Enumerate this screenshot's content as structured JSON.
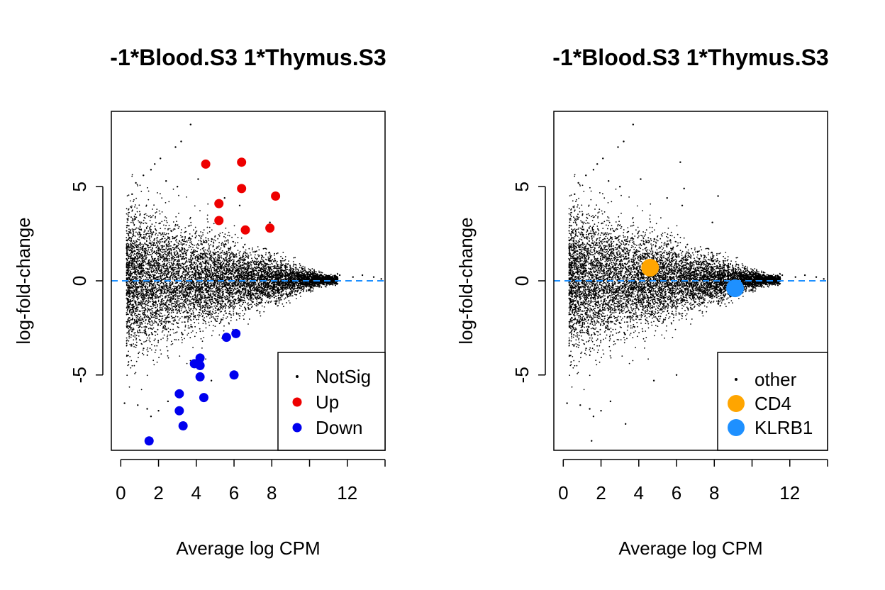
{
  "chart_data": [
    {
      "type": "scatter",
      "title": "-1*Blood.S3 1*Thymus.S3",
      "xlabel": "Average log CPM",
      "ylabel": "log-fold-change",
      "xlim": [
        -0.5,
        14
      ],
      "ylim": [
        -9,
        9
      ],
      "x_ticks": [
        0,
        2,
        4,
        6,
        8,
        10,
        12,
        14
      ],
      "x_tick_labels": [
        "0",
        "2",
        "4",
        "6",
        "8",
        "",
        "12",
        ""
      ],
      "y_ticks": [
        -5,
        0,
        5
      ],
      "y_tick_labels": [
        "-5",
        "0",
        "5"
      ],
      "reference_line": {
        "y": 0,
        "color": "#1E90FF",
        "style": "dashed"
      },
      "legend": {
        "placement": "bottom-right",
        "entries": [
          {
            "label": "NotSig",
            "color": "#000000",
            "marker": "small-dot"
          },
          {
            "label": "Up",
            "color": "#EE0000",
            "marker": "dot"
          },
          {
            "label": "Down",
            "color": "#0000EE",
            "marker": "dot"
          }
        ]
      },
      "background": {
        "name": "NotSig",
        "color": "#000000",
        "bulk_x_range": [
          0.3,
          11.5
        ],
        "tail_points": [
          [
            3.7,
            8.3
          ],
          [
            3.2,
            7.4
          ],
          [
            2.9,
            7.1
          ],
          [
            1.6,
            5.9
          ],
          [
            1.8,
            6.2
          ],
          [
            2.1,
            6.5
          ],
          [
            0.8,
            5.2
          ],
          [
            0.6,
            4.6
          ],
          [
            1.2,
            5.6
          ],
          [
            2.4,
            5.3
          ],
          [
            3.0,
            5.0
          ],
          [
            4.1,
            5.4
          ],
          [
            5.5,
            4.4
          ],
          [
            6.3,
            4.0
          ],
          [
            7.9,
            3.1
          ],
          [
            11.6,
            0.3
          ],
          [
            12.3,
            0.2
          ],
          [
            12.8,
            0.3
          ],
          [
            13.4,
            0.2
          ],
          [
            13.8,
            0.1
          ],
          [
            0.9,
            -6.6
          ],
          [
            0.2,
            -6.5
          ],
          [
            1.4,
            -6.8
          ],
          [
            1.6,
            -7.2
          ],
          [
            2.0,
            -6.9
          ],
          [
            2.5,
            -6.4
          ],
          [
            4.8,
            -5.3
          ],
          [
            8.2,
            -1.2
          ]
        ]
      },
      "series": [
        {
          "name": "Up",
          "color": "#EE0000",
          "points": [
            [
              4.5,
              6.2
            ],
            [
              6.4,
              6.3
            ],
            [
              6.4,
              4.9
            ],
            [
              8.2,
              4.5
            ],
            [
              5.2,
              4.1
            ],
            [
              5.2,
              3.2
            ],
            [
              6.6,
              2.7
            ],
            [
              7.9,
              2.8
            ]
          ]
        },
        {
          "name": "Down",
          "color": "#0000EE",
          "points": [
            [
              6.1,
              -2.8
            ],
            [
              5.6,
              -3.0
            ],
            [
              4.2,
              -4.1
            ],
            [
              3.9,
              -4.4
            ],
            [
              4.2,
              -4.5
            ],
            [
              4.2,
              -5.1
            ],
            [
              6.0,
              -5.0
            ],
            [
              3.1,
              -6.0
            ],
            [
              4.4,
              -6.2
            ],
            [
              3.1,
              -6.9
            ],
            [
              3.3,
              -7.7
            ],
            [
              1.5,
              -8.5
            ]
          ]
        }
      ]
    },
    {
      "type": "scatter",
      "title": "-1*Blood.S3 1*Thymus.S3",
      "xlabel": "Average log CPM",
      "ylabel": "log-fold-change",
      "xlim": [
        -0.5,
        14
      ],
      "ylim": [
        -9,
        9
      ],
      "x_ticks": [
        0,
        2,
        4,
        6,
        8,
        10,
        12,
        14
      ],
      "x_tick_labels": [
        "0",
        "2",
        "4",
        "6",
        "8",
        "",
        "12",
        ""
      ],
      "y_ticks": [
        -5,
        0,
        5
      ],
      "y_tick_labels": [
        "-5",
        "0",
        "5"
      ],
      "reference_line": {
        "y": 0,
        "color": "#1E90FF",
        "style": "dashed"
      },
      "legend": {
        "placement": "bottom-right",
        "entries": [
          {
            "label": "other",
            "color": "#000000",
            "marker": "small-dot"
          },
          {
            "label": "CD4",
            "color": "#FFA500",
            "marker": "large-dot"
          },
          {
            "label": "KLRB1",
            "color": "#1E90FF",
            "marker": "large-dot"
          }
        ]
      },
      "background": {
        "name": "other",
        "color": "#000000",
        "bulk_x_range": [
          0.3,
          11.5
        ],
        "tail_points": [
          [
            3.7,
            8.3
          ],
          [
            3.2,
            7.4
          ],
          [
            2.9,
            7.1
          ],
          [
            1.6,
            5.9
          ],
          [
            1.8,
            6.2
          ],
          [
            2.1,
            6.5
          ],
          [
            0.8,
            5.2
          ],
          [
            0.6,
            4.6
          ],
          [
            1.2,
            5.6
          ],
          [
            2.4,
            5.3
          ],
          [
            3.0,
            5.0
          ],
          [
            4.1,
            5.4
          ],
          [
            6.2,
            6.3
          ],
          [
            6.4,
            4.9
          ],
          [
            8.2,
            4.5
          ],
          [
            5.5,
            4.4
          ],
          [
            6.3,
            4.0
          ],
          [
            7.9,
            3.1
          ],
          [
            11.6,
            0.3
          ],
          [
            12.3,
            0.2
          ],
          [
            12.8,
            0.3
          ],
          [
            13.4,
            0.2
          ],
          [
            13.8,
            0.1
          ],
          [
            0.9,
            -6.6
          ],
          [
            0.2,
            -6.5
          ],
          [
            1.4,
            -6.8
          ],
          [
            1.6,
            -7.2
          ],
          [
            2.0,
            -6.9
          ],
          [
            2.5,
            -6.4
          ],
          [
            3.3,
            -7.6
          ],
          [
            1.5,
            -8.5
          ],
          [
            6.0,
            -5.0
          ],
          [
            4.8,
            -5.3
          ],
          [
            8.2,
            -1.2
          ]
        ]
      },
      "series": [
        {
          "name": "CD4",
          "color": "#FFA500",
          "points": [
            [
              4.6,
              0.7
            ]
          ]
        },
        {
          "name": "KLRB1",
          "color": "#1E90FF",
          "points": [
            [
              9.1,
              -0.4
            ]
          ]
        }
      ]
    }
  ]
}
